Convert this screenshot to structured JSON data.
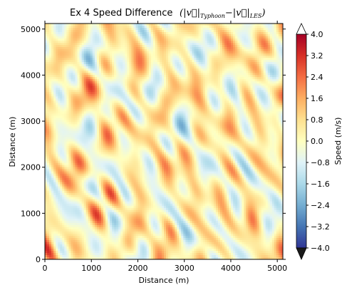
{
  "chart_data": {
    "type": "heatmap",
    "title": "Ex 4 Speed Difference",
    "title_math": "(|v⃗|",
    "title_math_sub1": "Typhoon",
    "title_math_mid": "−|v⃗|",
    "title_math_sub2": "LES",
    "title_math_end": ")",
    "xlabel": "Distance (m)",
    "ylabel": "Distance (m)",
    "xlim": [
      0,
      5120
    ],
    "ylim": [
      0,
      5120
    ],
    "xticks": [
      0,
      1000,
      2000,
      3000,
      4000,
      5000
    ],
    "yticks": [
      0,
      1000,
      2000,
      3000,
      4000,
      5000
    ],
    "xtick_labels": [
      "0",
      "1000",
      "2000",
      "3000",
      "4000",
      "5000"
    ],
    "ytick_labels": [
      "0",
      "1000",
      "2000",
      "3000",
      "4000",
      "5000"
    ],
    "colorbar": {
      "label": "Speed (m/s)",
      "range": [
        -4.0,
        4.0
      ],
      "extend": "both",
      "ticks": [
        -4.0,
        -3.2,
        -2.4,
        -1.6,
        -0.8,
        0.0,
        0.8,
        1.6,
        2.4,
        3.2,
        4.0
      ],
      "tick_labels": [
        "−4.0",
        "−3.2",
        "−2.4",
        "−1.6",
        "−0.8",
        "0.0",
        "0.8",
        "1.6",
        "2.4",
        "3.2",
        "4.0"
      ],
      "colormap": [
        "#313695",
        "#4575b4",
        "#74add1",
        "#abd9e9",
        "#e0f3f8",
        "#ffffbf",
        "#fee090",
        "#fdae61",
        "#f46d43",
        "#d73027",
        "#a50026"
      ],
      "under_color": "#1a1a1a",
      "over_color": "#ffffff"
    },
    "grid": false
  }
}
